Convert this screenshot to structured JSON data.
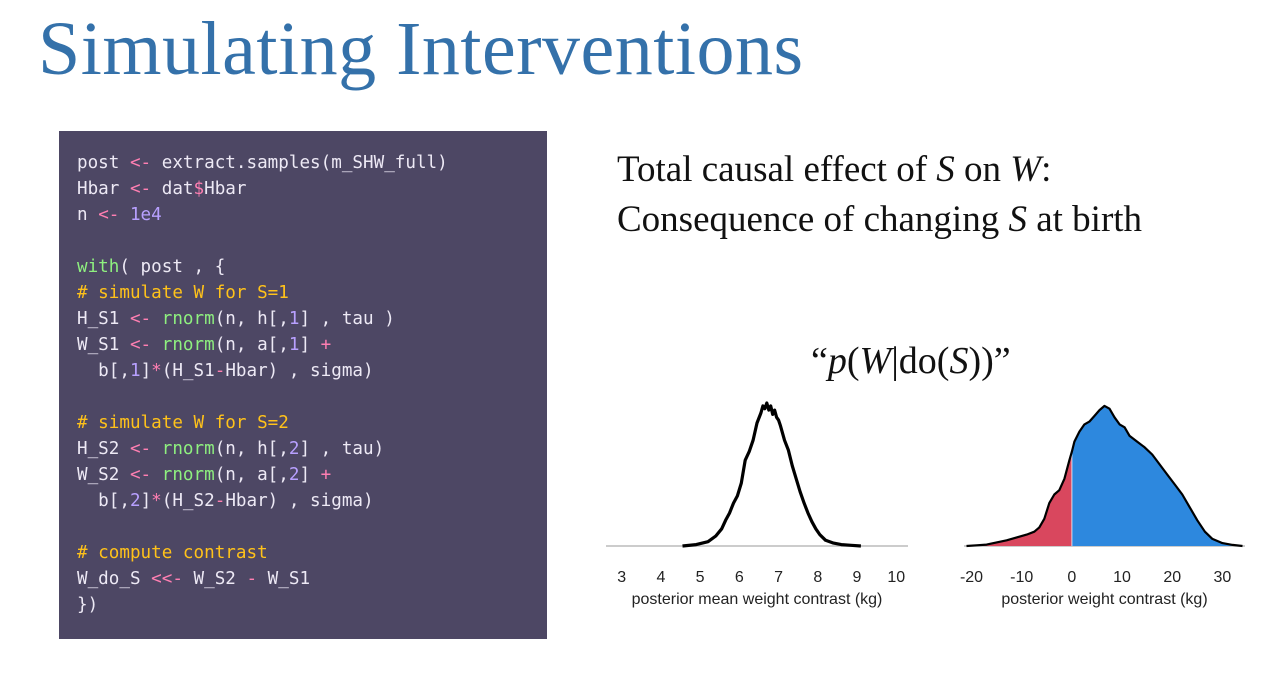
{
  "title": "Simulating Interventions",
  "code_lines": [
    [
      {
        "t": "post ",
        "c": "plain"
      },
      {
        "t": "<-",
        "c": "op"
      },
      {
        "t": " extract.samples(m_SHW_full)",
        "c": "plain"
      }
    ],
    [
      {
        "t": "Hbar ",
        "c": "plain"
      },
      {
        "t": "<-",
        "c": "op"
      },
      {
        "t": " dat",
        "c": "plain"
      },
      {
        "t": "$",
        "c": "op"
      },
      {
        "t": "Hbar",
        "c": "plain"
      }
    ],
    [
      {
        "t": "n ",
        "c": "plain"
      },
      {
        "t": "<-",
        "c": "op"
      },
      {
        "t": " ",
        "c": "plain"
      },
      {
        "t": "1e4",
        "c": "num"
      }
    ],
    [],
    [
      {
        "t": "with",
        "c": "fn"
      },
      {
        "t": "( post , {",
        "c": "plain"
      }
    ],
    [
      {
        "t": "# simulate W for S=1",
        "c": "com"
      }
    ],
    [
      {
        "t": "H_S1 ",
        "c": "plain"
      },
      {
        "t": "<-",
        "c": "op"
      },
      {
        "t": " ",
        "c": "plain"
      },
      {
        "t": "rnorm",
        "c": "fn"
      },
      {
        "t": "(n, h[,",
        "c": "plain"
      },
      {
        "t": "1",
        "c": "num"
      },
      {
        "t": "] , tau )",
        "c": "plain"
      }
    ],
    [
      {
        "t": "W_S1 ",
        "c": "plain"
      },
      {
        "t": "<-",
        "c": "op"
      },
      {
        "t": " ",
        "c": "plain"
      },
      {
        "t": "rnorm",
        "c": "fn"
      },
      {
        "t": "(n, a[,",
        "c": "plain"
      },
      {
        "t": "1",
        "c": "num"
      },
      {
        "t": "] ",
        "c": "plain"
      },
      {
        "t": "+",
        "c": "op"
      }
    ],
    [
      {
        "t": "  b[,",
        "c": "plain"
      },
      {
        "t": "1",
        "c": "num"
      },
      {
        "t": "]",
        "c": "plain"
      },
      {
        "t": "*",
        "c": "op"
      },
      {
        "t": "(H_S1",
        "c": "plain"
      },
      {
        "t": "-",
        "c": "op"
      },
      {
        "t": "Hbar) , sigma)",
        "c": "plain"
      }
    ],
    [],
    [
      {
        "t": "# simulate W for S=2",
        "c": "com"
      }
    ],
    [
      {
        "t": "H_S2 ",
        "c": "plain"
      },
      {
        "t": "<-",
        "c": "op"
      },
      {
        "t": " ",
        "c": "plain"
      },
      {
        "t": "rnorm",
        "c": "fn"
      },
      {
        "t": "(n, h[,",
        "c": "plain"
      },
      {
        "t": "2",
        "c": "num"
      },
      {
        "t": "] , tau)",
        "c": "plain"
      }
    ],
    [
      {
        "t": "W_S2 ",
        "c": "plain"
      },
      {
        "t": "<-",
        "c": "op"
      },
      {
        "t": " ",
        "c": "plain"
      },
      {
        "t": "rnorm",
        "c": "fn"
      },
      {
        "t": "(n, a[,",
        "c": "plain"
      },
      {
        "t": "2",
        "c": "num"
      },
      {
        "t": "] ",
        "c": "plain"
      },
      {
        "t": "+",
        "c": "op"
      }
    ],
    [
      {
        "t": "  b[,",
        "c": "plain"
      },
      {
        "t": "2",
        "c": "num"
      },
      {
        "t": "]",
        "c": "plain"
      },
      {
        "t": "*",
        "c": "op"
      },
      {
        "t": "(H_S2",
        "c": "plain"
      },
      {
        "t": "-",
        "c": "op"
      },
      {
        "t": "Hbar) , sigma)",
        "c": "plain"
      }
    ],
    [],
    [
      {
        "t": "# compute contrast",
        "c": "com"
      }
    ],
    [
      {
        "t": "W_do_S ",
        "c": "plain"
      },
      {
        "t": "<<-",
        "c": "op"
      },
      {
        "t": " W_S2 ",
        "c": "plain"
      },
      {
        "t": "-",
        "c": "op"
      },
      {
        "t": " W_S1",
        "c": "plain"
      }
    ],
    [
      {
        "t": "})",
        "c": "plain"
      }
    ]
  ],
  "heading": {
    "line1": [
      {
        "t": "Total causal effect of ",
        "i": false
      },
      {
        "t": "S",
        "i": true
      },
      {
        "t": " on ",
        "i": false
      },
      {
        "t": "W",
        "i": true
      },
      {
        "t": ":",
        "i": false
      }
    ],
    "line2": [
      {
        "t": "Consequence of changing ",
        "i": false
      },
      {
        "t": "S",
        "i": true
      },
      {
        "t": " at birth",
        "i": false
      }
    ]
  },
  "formula": [
    {
      "t": "“",
      "i": false
    },
    {
      "t": "p",
      "i": true
    },
    {
      "t": "(",
      "i": false
    },
    {
      "t": "W",
      "i": true
    },
    {
      "t": "|do(",
      "i": false
    },
    {
      "t": "S",
      "i": true
    },
    {
      "t": "))”",
      "i": false
    }
  ],
  "colors": {
    "title": "#3471aa",
    "code_bg": "#4d4764",
    "negative_fill": "#d9475e",
    "positive_fill": "#2d88de",
    "curve": "#000000",
    "axis": "#bbbbbb"
  },
  "chart_data": [
    {
      "type": "area",
      "title": "",
      "xlabel": "posterior mean weight contrast (kg)",
      "ylabel": "",
      "xlim": [
        2.6,
        10.3
      ],
      "ylim": [
        0,
        1.0
      ],
      "xticks": [
        "3",
        "4",
        "5",
        "6",
        "7",
        "8",
        "9",
        "10"
      ],
      "x": [
        4.55,
        4.9,
        5.2,
        5.4,
        5.55,
        5.65,
        5.75,
        5.85,
        5.95,
        6.05,
        6.15,
        6.25,
        6.35,
        6.45,
        6.55,
        6.6,
        6.65,
        6.7,
        6.75,
        6.8,
        6.85,
        6.9,
        6.95,
        7.0,
        7.05,
        7.15,
        7.25,
        7.35,
        7.45,
        7.55,
        7.65,
        7.75,
        7.85,
        7.95,
        8.05,
        8.2,
        8.4,
        8.6,
        8.85,
        9.1
      ],
      "y": [
        0.0,
        0.01,
        0.03,
        0.07,
        0.12,
        0.18,
        0.23,
        0.3,
        0.35,
        0.44,
        0.6,
        0.66,
        0.74,
        0.86,
        0.93,
        0.98,
        0.96,
        1.0,
        0.95,
        0.98,
        0.92,
        0.95,
        0.9,
        0.88,
        0.84,
        0.74,
        0.67,
        0.56,
        0.47,
        0.38,
        0.3,
        0.23,
        0.17,
        0.12,
        0.08,
        0.04,
        0.02,
        0.01,
        0.005,
        0.0
      ],
      "grid": false
    },
    {
      "type": "area",
      "title": "",
      "xlabel": "posterior weight contrast (kg)",
      "ylabel": "",
      "xlim": [
        -21.5,
        34.5
      ],
      "ylim": [
        0,
        1.0
      ],
      "xticks": [
        "-20",
        "-10",
        "0",
        "10",
        "20",
        "30"
      ],
      "x": [
        -21,
        -19,
        -17,
        -15,
        -13,
        -11,
        -9,
        -7.5,
        -6.5,
        -5.5,
        -4.5,
        -3.5,
        -2.5,
        -1.5,
        -0.5,
        0,
        0.5,
        1.5,
        2.5,
        3.5,
        4.5,
        5.5,
        6.5,
        7.5,
        8.5,
        9.5,
        10.5,
        11.5,
        13,
        14.5,
        16,
        17.5,
        19,
        20.5,
        22,
        23.5,
        25,
        26.5,
        28,
        30,
        32,
        34
      ],
      "y": [
        0.0,
        0.005,
        0.01,
        0.025,
        0.04,
        0.06,
        0.08,
        0.1,
        0.13,
        0.19,
        0.3,
        0.36,
        0.39,
        0.47,
        0.6,
        0.66,
        0.73,
        0.8,
        0.85,
        0.87,
        0.91,
        0.95,
        0.98,
        0.96,
        0.9,
        0.85,
        0.83,
        0.77,
        0.73,
        0.69,
        0.64,
        0.57,
        0.5,
        0.43,
        0.36,
        0.27,
        0.18,
        0.1,
        0.05,
        0.02,
        0.008,
        0.0
      ],
      "split_at": 0,
      "grid": false
    }
  ]
}
